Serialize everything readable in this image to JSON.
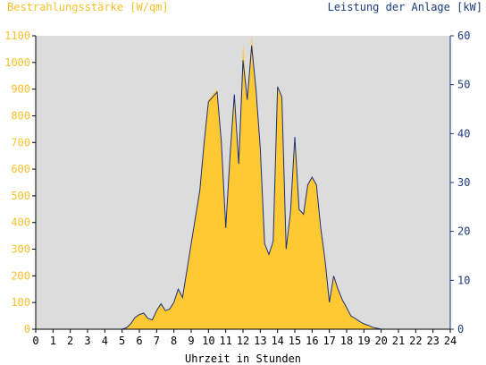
{
  "chart_data": {
    "type": "area",
    "title_left": "Bestrahlungsstärke [W/qm]",
    "title_right": "Leistung der Anlage [kW]",
    "xlabel": "Uhrzeit in Stunden",
    "x_range": [
      0,
      24
    ],
    "x_ticks": [
      "0",
      "1",
      "2",
      "3",
      "4",
      "5",
      "6",
      "7",
      "8",
      "9",
      "10",
      "11",
      "12",
      "13",
      "14",
      "15",
      "16",
      "17",
      "18",
      "19",
      "20",
      "21",
      "22",
      "23",
      "24"
    ],
    "y_left": {
      "range": [
        0,
        1100
      ],
      "ticks": [
        "0",
        "100",
        "200",
        "300",
        "400",
        "500",
        "600",
        "700",
        "800",
        "900",
        "1000",
        "1100"
      ]
    },
    "y_right": {
      "range": [
        0,
        60
      ],
      "ticks": [
        "0",
        "10",
        "20",
        "30",
        "40",
        "50",
        "60"
      ]
    },
    "grid": false,
    "colors": {
      "irradiance": "#ffc933",
      "power": "#1d2f78",
      "plot_bg": "#dcdcdc",
      "left_axis_text": "#f7c02b",
      "right_axis_text": "#1d3b7f"
    },
    "series": [
      {
        "name": "Bestrahlungsstärke [W/qm]",
        "axis": "left",
        "x": [
          0,
          5.0,
          5.25,
          5.5,
          5.75,
          6.0,
          6.25,
          6.5,
          6.75,
          7.0,
          7.25,
          7.5,
          7.75,
          8.0,
          8.25,
          8.5,
          8.75,
          9.0,
          9.25,
          9.5,
          9.75,
          10.0,
          10.25,
          10.5,
          10.75,
          11.0,
          11.25,
          11.5,
          11.75,
          12.0,
          12.25,
          12.5,
          12.75,
          13.0,
          13.25,
          13.5,
          13.75,
          14.0,
          14.25,
          14.5,
          14.75,
          15.0,
          15.25,
          15.5,
          15.75,
          16.0,
          16.25,
          16.5,
          16.75,
          17.0,
          17.25,
          17.5,
          17.75,
          18.0,
          18.25,
          18.5,
          18.75,
          19.0,
          19.25,
          19.5,
          19.75,
          20.0,
          20.25,
          24
        ],
        "y": [
          0,
          0,
          5,
          20,
          45,
          55,
          60,
          40,
          35,
          70,
          95,
          70,
          75,
          100,
          150,
          120,
          220,
          320,
          420,
          520,
          700,
          860,
          880,
          900,
          700,
          380,
          650,
          880,
          620,
          1070,
          860,
          1100,
          900,
          680,
          320,
          280,
          330,
          910,
          870,
          300,
          440,
          720,
          450,
          430,
          540,
          570,
          540,
          380,
          260,
          100,
          200,
          150,
          110,
          80,
          50,
          40,
          30,
          20,
          15,
          8,
          3,
          0,
          0,
          0
        ]
      },
      {
        "name": "Leistung der Anlage [kW]",
        "axis": "right",
        "x": [
          0,
          5.0,
          5.25,
          5.5,
          5.75,
          6.0,
          6.25,
          6.5,
          6.75,
          7.0,
          7.25,
          7.5,
          7.75,
          8.0,
          8.25,
          8.5,
          8.75,
          9.0,
          9.25,
          9.5,
          9.75,
          10.0,
          10.25,
          10.5,
          10.75,
          11.0,
          11.25,
          11.5,
          11.75,
          12.0,
          12.25,
          12.5,
          12.75,
          13.0,
          13.25,
          13.5,
          13.75,
          14.0,
          14.25,
          14.5,
          14.75,
          15.0,
          15.25,
          15.5,
          15.75,
          16.0,
          16.25,
          16.5,
          16.75,
          17.0,
          17.25,
          17.5,
          17.75,
          18.0,
          18.25,
          18.5,
          18.75,
          19.0,
          19.25,
          19.5,
          19.75,
          20.0,
          20.25,
          24
        ],
        "y": [
          0,
          0,
          0.3,
          1.1,
          2.4,
          3.0,
          3.3,
          2.2,
          1.9,
          3.8,
          5.2,
          3.8,
          4.1,
          5.5,
          8.2,
          6.5,
          12.0,
          17.5,
          22.9,
          28.4,
          38.2,
          46.5,
          47.5,
          48.5,
          38.2,
          20.7,
          35.5,
          48.0,
          33.8,
          55.0,
          46.9,
          58.0,
          49.1,
          37.1,
          17.5,
          15.3,
          18.0,
          49.6,
          47.5,
          16.4,
          24.0,
          39.3,
          24.5,
          23.5,
          29.5,
          31.1,
          29.5,
          20.7,
          14.2,
          5.5,
          10.9,
          8.2,
          6.0,
          4.4,
          2.7,
          2.2,
          1.6,
          1.1,
          0.8,
          0.4,
          0.2,
          0,
          0,
          0
        ]
      }
    ]
  }
}
